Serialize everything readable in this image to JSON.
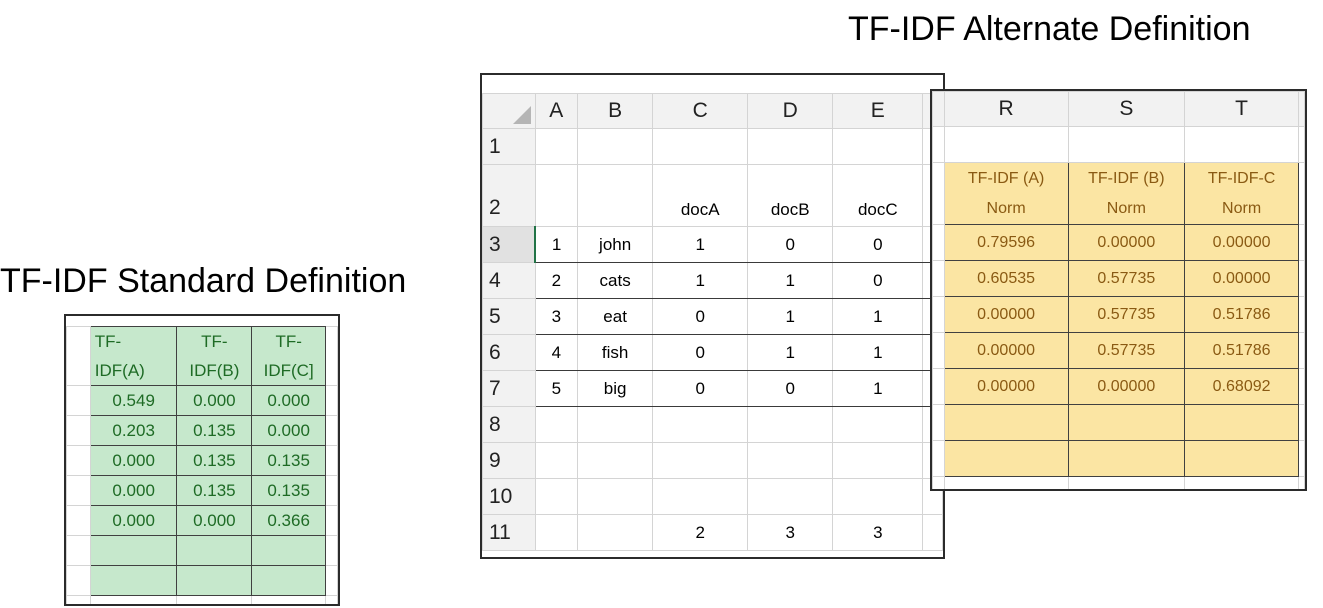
{
  "titles": {
    "alternate": "TF-IDF Alternate Definition",
    "standard": "TF-IDF Standard Definition"
  },
  "main_sheet": {
    "columns": [
      "A",
      "B",
      "C",
      "D",
      "E"
    ],
    "row_numbers": [
      "1",
      "2",
      "3",
      "4",
      "5",
      "6",
      "7",
      "8",
      "9",
      "10",
      "11"
    ],
    "doc_headers": [
      "docA",
      "docB",
      "docC"
    ],
    "rows": [
      {
        "num": "1",
        "term": "john",
        "docA": "1",
        "docB": "0",
        "docC": "0"
      },
      {
        "num": "2",
        "term": "cats",
        "docA": "1",
        "docB": "1",
        "docC": "0"
      },
      {
        "num": "3",
        "term": "eat",
        "docA": "0",
        "docB": "1",
        "docC": "1"
      },
      {
        "num": "4",
        "term": "fish",
        "docA": "0",
        "docB": "1",
        "docC": "1"
      },
      {
        "num": "5",
        "term": "big",
        "docA": "0",
        "docB": "0",
        "docC": "1"
      }
    ],
    "totals": [
      "2",
      "3",
      "3"
    ]
  },
  "alt_sheet": {
    "columns": [
      "R",
      "S",
      "T"
    ],
    "headers": [
      {
        "line1": "TF-IDF (A)",
        "line2": "Norm"
      },
      {
        "line1": "TF-IDF (B)",
        "line2": "Norm"
      },
      {
        "line1": "TF-IDF-C",
        "line2": "Norm"
      }
    ],
    "rows": [
      [
        "0.79596",
        "0.00000",
        "0.00000"
      ],
      [
        "0.60535",
        "0.57735",
        "0.00000"
      ],
      [
        "0.00000",
        "0.57735",
        "0.51786"
      ],
      [
        "0.00000",
        "0.57735",
        "0.51786"
      ],
      [
        "0.00000",
        "0.00000",
        "0.68092"
      ]
    ]
  },
  "std_sheet": {
    "headers": [
      {
        "line1": "TF-",
        "line2": "IDF(A)"
      },
      {
        "line1": "TF-",
        "line2": "IDF(B)"
      },
      {
        "line1": "TF-",
        "line2": "IDF(C]"
      }
    ],
    "rows": [
      [
        "0.549",
        "0.000",
        "0.000"
      ],
      [
        "0.203",
        "0.135",
        "0.000"
      ],
      [
        "0.000",
        "0.135",
        "0.135"
      ],
      [
        "0.000",
        "0.135",
        "0.135"
      ],
      [
        "0.000",
        "0.000",
        "0.366"
      ]
    ]
  }
}
